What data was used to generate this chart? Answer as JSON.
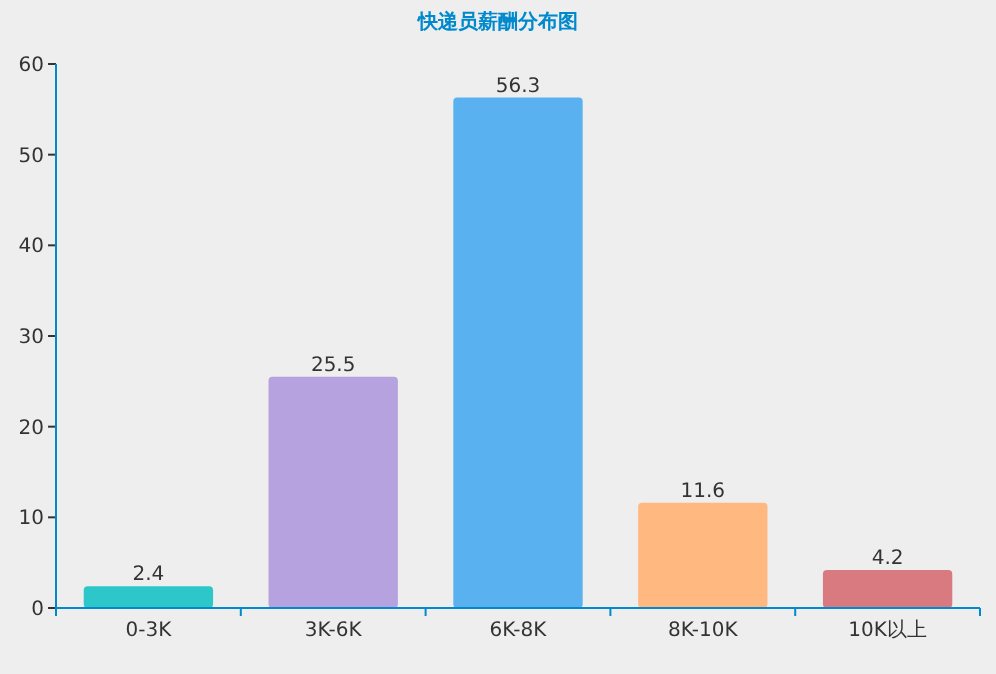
{
  "chart_data": {
    "type": "bar",
    "title": "快递员薪酬分布图",
    "categories": [
      "0-3K",
      "3K-6K",
      "6K-8K",
      "8K-10K",
      "10K以上"
    ],
    "values": [
      2.4,
      25.5,
      56.3,
      11.6,
      4.2
    ],
    "colors": [
      "#2ec7c9",
      "#b6a2de",
      "#5ab1ef",
      "#ffb980",
      "#d87a80"
    ],
    "ylim": [
      0,
      60
    ],
    "yticks": [
      0,
      10,
      20,
      30,
      40,
      50,
      60
    ],
    "grid": false,
    "data_labels": true
  }
}
